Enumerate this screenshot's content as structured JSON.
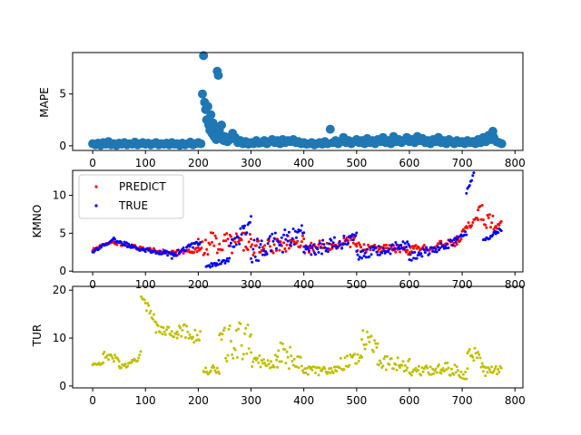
{
  "chart_data": [
    {
      "type": "scatter",
      "ylabel": "MAPE",
      "xlim": [
        -38,
        815
      ],
      "ylim": [
        -0.45,
        9.0
      ],
      "xticks": [
        0,
        100,
        200,
        300,
        400,
        500,
        600,
        700,
        800
      ],
      "yticks": [
        0,
        5
      ],
      "series": [
        {
          "color": "#1f77b4",
          "marker": "large-dot",
          "points": [
            [
              0,
              0.2
            ],
            [
              5,
              0.1
            ],
            [
              10,
              0.25
            ],
            [
              15,
              0.05
            ],
            [
              20,
              0.3
            ],
            [
              25,
              0.15
            ],
            [
              30,
              0.4
            ],
            [
              35,
              0.1
            ],
            [
              40,
              0.2
            ],
            [
              45,
              0.05
            ],
            [
              50,
              0.25
            ],
            [
              55,
              0.15
            ],
            [
              60,
              0.3
            ],
            [
              65,
              0.1
            ],
            [
              70,
              0.2
            ],
            [
              75,
              0.15
            ],
            [
              80,
              0.35
            ],
            [
              85,
              0.1
            ],
            [
              90,
              0.2
            ],
            [
              95,
              0.3
            ],
            [
              100,
              0.15
            ],
            [
              105,
              0.25
            ],
            [
              110,
              0.1
            ],
            [
              115,
              0.2
            ],
            [
              120,
              0.3
            ],
            [
              125,
              0.1
            ],
            [
              130,
              0.2
            ],
            [
              135,
              0.15
            ],
            [
              140,
              0.25
            ],
            [
              145,
              0.1
            ],
            [
              150,
              0.3
            ],
            [
              155,
              0.15
            ],
            [
              160,
              0.2
            ],
            [
              165,
              0.05
            ],
            [
              170,
              0.25
            ],
            [
              175,
              0.1
            ],
            [
              180,
              0.2
            ],
            [
              185,
              0.35
            ],
            [
              190,
              0.1
            ],
            [
              195,
              0.2
            ],
            [
              200,
              0.3
            ],
            [
              205,
              0.2
            ],
            [
              208,
              5.0
            ],
            [
              210,
              8.7
            ],
            [
              212,
              4.2
            ],
            [
              214,
              3.5
            ],
            [
              216,
              2.5
            ],
            [
              218,
              3.8
            ],
            [
              220,
              2.0
            ],
            [
              222,
              1.5
            ],
            [
              224,
              3.0
            ],
            [
              226,
              1.2
            ],
            [
              228,
              2.2
            ],
            [
              230,
              0.9
            ],
            [
              232,
              1.8
            ],
            [
              234,
              0.6
            ],
            [
              236,
              7.2
            ],
            [
              238,
              6.8
            ],
            [
              240,
              1.5
            ],
            [
              242,
              1.0
            ],
            [
              244,
              2.0
            ],
            [
              246,
              0.8
            ],
            [
              248,
              0.5
            ],
            [
              250,
              0.9
            ],
            [
              255,
              0.4
            ],
            [
              260,
              0.6
            ],
            [
              265,
              1.2
            ],
            [
              270,
              0.8
            ],
            [
              275,
              0.3
            ],
            [
              280,
              0.5
            ],
            [
              285,
              0.2
            ],
            [
              290,
              0.4
            ],
            [
              295,
              0.15
            ],
            [
              300,
              0.3
            ],
            [
              305,
              0.2
            ],
            [
              310,
              0.5
            ],
            [
              315,
              0.25
            ],
            [
              320,
              0.3
            ],
            [
              325,
              0.5
            ],
            [
              330,
              0.2
            ],
            [
              335,
              0.4
            ],
            [
              340,
              0.6
            ],
            [
              345,
              0.3
            ],
            [
              350,
              0.5
            ],
            [
              355,
              0.2
            ],
            [
              360,
              0.6
            ],
            [
              365,
              0.3
            ],
            [
              370,
              0.5
            ],
            [
              375,
              0.4
            ],
            [
              380,
              0.6
            ],
            [
              385,
              0.3
            ],
            [
              390,
              0.4
            ],
            [
              395,
              0.2
            ],
            [
              400,
              0.3
            ],
            [
              405,
              0.15
            ],
            [
              410,
              0.2
            ],
            [
              415,
              0.3
            ],
            [
              420,
              0.1
            ],
            [
              425,
              0.2
            ],
            [
              430,
              0.3
            ],
            [
              435,
              0.15
            ],
            [
              440,
              0.4
            ],
            [
              445,
              0.2
            ],
            [
              450,
              1.6
            ],
            [
              455,
              0.3
            ],
            [
              460,
              0.5
            ],
            [
              465,
              0.2
            ],
            [
              470,
              0.4
            ],
            [
              475,
              0.8
            ],
            [
              480,
              0.3
            ],
            [
              485,
              0.5
            ],
            [
              490,
              0.2
            ],
            [
              495,
              0.4
            ],
            [
              500,
              0.6
            ],
            [
              505,
              0.3
            ],
            [
              510,
              0.5
            ],
            [
              515,
              0.2
            ],
            [
              520,
              0.7
            ],
            [
              525,
              0.3
            ],
            [
              530,
              0.5
            ],
            [
              535,
              0.2
            ],
            [
              540,
              0.6
            ],
            [
              545,
              0.4
            ],
            [
              550,
              0.8
            ],
            [
              555,
              0.3
            ],
            [
              560,
              0.5
            ],
            [
              565,
              0.2
            ],
            [
              570,
              0.9
            ],
            [
              575,
              0.4
            ],
            [
              580,
              0.6
            ],
            [
              585,
              0.3
            ],
            [
              590,
              0.5
            ],
            [
              595,
              0.8
            ],
            [
              600,
              0.4
            ],
            [
              605,
              0.6
            ],
            [
              610,
              0.3
            ],
            [
              615,
              0.9
            ],
            [
              620,
              0.5
            ],
            [
              625,
              0.7
            ],
            [
              630,
              0.3
            ],
            [
              635,
              0.5
            ],
            [
              640,
              0.2
            ],
            [
              645,
              0.6
            ],
            [
              650,
              0.4
            ],
            [
              655,
              0.8
            ],
            [
              660,
              0.3
            ],
            [
              665,
              0.5
            ],
            [
              670,
              0.2
            ],
            [
              675,
              0.6
            ],
            [
              680,
              0.4
            ],
            [
              685,
              0.2
            ],
            [
              690,
              0.5
            ],
            [
              695,
              0.3
            ],
            [
              700,
              0.4
            ],
            [
              705,
              0.2
            ],
            [
              710,
              0.5
            ],
            [
              715,
              0.3
            ],
            [
              720,
              0.4
            ],
            [
              725,
              0.2
            ],
            [
              730,
              0.6
            ],
            [
              735,
              0.3
            ],
            [
              740,
              0.8
            ],
            [
              745,
              0.4
            ],
            [
              750,
              1.0
            ],
            [
              755,
              0.6
            ],
            [
              758,
              1.4
            ],
            [
              760,
              0.8
            ],
            [
              765,
              0.4
            ],
            [
              770,
              0.3
            ],
            [
              775,
              0.2
            ]
          ]
        }
      ]
    },
    {
      "type": "scatter",
      "ylabel": "KMNO",
      "xlim": [
        -38,
        815
      ],
      "ylim": [
        -0.1,
        13.3
      ],
      "xticks": [
        0,
        100,
        200,
        300,
        400,
        500,
        600,
        700,
        800
      ],
      "yticks": [
        0,
        5,
        10
      ],
      "legend": {
        "placement": "upper-left"
      },
      "series": [
        {
          "name": "PREDICT",
          "color": "#ff0000",
          "marker": "small-dot",
          "segments": [
            {
              "x0": 0,
              "x1": 40,
              "y0": 2.8,
              "y1": 4.0,
              "wob": 0.4
            },
            {
              "x0": 40,
              "x1": 90,
              "y0": 3.8,
              "y1": 3.0,
              "wob": 0.5
            },
            {
              "x0": 90,
              "x1": 150,
              "y0": 3.0,
              "y1": 2.4,
              "wob": 0.5
            },
            {
              "x0": 150,
              "x1": 200,
              "y0": 2.4,
              "y1": 2.8,
              "wob": 0.6
            },
            {
              "x0": 200,
              "x1": 300,
              "y0": 3.5,
              "y1": 4.0,
              "wob": 3.0
            },
            {
              "x0": 300,
              "x1": 400,
              "y0": 2.8,
              "y1": 4.0,
              "wob": 2.0
            },
            {
              "x0": 400,
              "x1": 500,
              "y0": 3.0,
              "y1": 4.0,
              "wob": 1.5
            },
            {
              "x0": 500,
              "x1": 600,
              "y0": 3.2,
              "y1": 2.8,
              "wob": 1.2
            },
            {
              "x0": 600,
              "x1": 690,
              "y0": 2.8,
              "y1": 3.8,
              "wob": 1.0
            },
            {
              "x0": 690,
              "x1": 730,
              "y0": 4.0,
              "y1": 7.5,
              "wob": 1.2
            },
            {
              "x0": 730,
              "x1": 760,
              "y0": 8.0,
              "y1": 6.0,
              "wob": 2.5
            },
            {
              "x0": 760,
              "x1": 775,
              "y0": 5.5,
              "y1": 6.5,
              "wob": 0.6
            }
          ]
        },
        {
          "name": "TRUE",
          "color": "#0000ff",
          "marker": "small-dot",
          "segments": [
            {
              "x0": 0,
              "x1": 40,
              "y0": 2.6,
              "y1": 4.2,
              "wob": 0.4
            },
            {
              "x0": 40,
              "x1": 90,
              "y0": 4.0,
              "y1": 3.0,
              "wob": 0.6
            },
            {
              "x0": 90,
              "x1": 150,
              "y0": 3.0,
              "y1": 2.2,
              "wob": 0.6
            },
            {
              "x0": 150,
              "x1": 205,
              "y0": 2.0,
              "y1": 4.0,
              "wob": 0.7
            },
            {
              "x0": 215,
              "x1": 260,
              "y0": 0.6,
              "y1": 1.6,
              "wob": 0.7
            },
            {
              "x0": 260,
              "x1": 300,
              "y0": 3.0,
              "y1": 6.5,
              "wob": 2.0
            },
            {
              "x0": 300,
              "x1": 400,
              "y0": 2.5,
              "y1": 5.0,
              "wob": 3.0
            },
            {
              "x0": 400,
              "x1": 500,
              "y0": 2.5,
              "y1": 4.5,
              "wob": 1.8
            },
            {
              "x0": 500,
              "x1": 600,
              "y0": 2.0,
              "y1": 3.5,
              "wob": 1.4
            },
            {
              "x0": 600,
              "x1": 690,
              "y0": 1.8,
              "y1": 4.0,
              "wob": 1.2
            },
            {
              "x0": 690,
              "x1": 708,
              "y0": 4.5,
              "y1": 5.0,
              "wob": 0.6
            },
            {
              "x0": 708,
              "x1": 722,
              "y0": 10.5,
              "y1": 12.8,
              "wob": 0.6
            },
            {
              "x0": 740,
              "x1": 775,
              "y0": 4.0,
              "y1": 5.6,
              "wob": 0.5
            }
          ]
        }
      ]
    },
    {
      "type": "scatter",
      "ylabel": "TUR",
      "xlim": [
        -38,
        815
      ],
      "ylim": [
        -0.4,
        20.8
      ],
      "xticks": [
        0,
        100,
        200,
        300,
        400,
        500,
        600,
        700,
        800
      ],
      "yticks": [
        0,
        10,
        20
      ],
      "series": [
        {
          "color": "#bfbf00",
          "marker": "small-dot",
          "segments": [
            {
              "x0": 0,
              "x1": 20,
              "y0": 4.5,
              "y1": 4.6,
              "wob": 0.6
            },
            {
              "x0": 20,
              "x1": 50,
              "y0": 6.5,
              "y1": 5.5,
              "wob": 1.5
            },
            {
              "x0": 50,
              "x1": 75,
              "y0": 4.0,
              "y1": 4.5,
              "wob": 1.2
            },
            {
              "x0": 75,
              "x1": 92,
              "y0": 5.0,
              "y1": 7.0,
              "wob": 2.0
            },
            {
              "x0": 92,
              "x1": 120,
              "y0": 18.0,
              "y1": 14.0,
              "wob": 2.0
            },
            {
              "x0": 120,
              "x1": 160,
              "y0": 12.0,
              "y1": 11.0,
              "wob": 2.0
            },
            {
              "x0": 160,
              "x1": 205,
              "y0": 12.0,
              "y1": 10.0,
              "wob": 3.0
            },
            {
              "x0": 210,
              "x1": 240,
              "y0": 3.0,
              "y1": 3.5,
              "wob": 2.0
            },
            {
              "x0": 240,
              "x1": 300,
              "y0": 8.0,
              "y1": 10.0,
              "wob": 8.0
            },
            {
              "x0": 300,
              "x1": 350,
              "y0": 5.5,
              "y1": 5.0,
              "wob": 3.0
            },
            {
              "x0": 350,
              "x1": 400,
              "y0": 7.0,
              "y1": 5.0,
              "wob": 5.0
            },
            {
              "x0": 400,
              "x1": 460,
              "y0": 3.0,
              "y1": 3.5,
              "wob": 2.0
            },
            {
              "x0": 460,
              "x1": 510,
              "y0": 4.0,
              "y1": 6.5,
              "wob": 3.0
            },
            {
              "x0": 510,
              "x1": 540,
              "y0": 10.0,
              "y1": 8.0,
              "wob": 4.0
            },
            {
              "x0": 540,
              "x1": 600,
              "y0": 5.0,
              "y1": 4.5,
              "wob": 3.0
            },
            {
              "x0": 600,
              "x1": 660,
              "y0": 3.0,
              "y1": 3.5,
              "wob": 2.0
            },
            {
              "x0": 660,
              "x1": 710,
              "y0": 4.0,
              "y1": 2.5,
              "wob": 2.5
            },
            {
              "x0": 710,
              "x1": 740,
              "y0": 8.0,
              "y1": 5.0,
              "wob": 3.0
            },
            {
              "x0": 740,
              "x1": 775,
              "y0": 3.0,
              "y1": 3.5,
              "wob": 2.0
            }
          ]
        }
      ]
    }
  ]
}
